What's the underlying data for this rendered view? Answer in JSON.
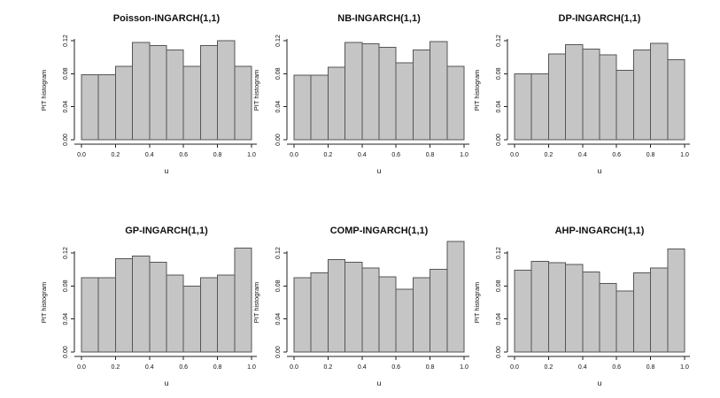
{
  "figure": {
    "background": "#ffffff",
    "bar_fill": "#c5c5c5",
    "bar_stroke": "#555555",
    "axis_color": "#222222",
    "text_color": "#111111"
  },
  "chart_data": [
    {
      "type": "bar",
      "variant": "histogram",
      "title": "Poisson-INGARCH(1,1)",
      "xlabel": "u",
      "ylabel": "PIT histogram",
      "bin_start": 0,
      "bin_width": 0.1,
      "values": [
        0.079,
        0.079,
        0.089,
        0.118,
        0.114,
        0.109,
        0.089,
        0.114,
        0.12,
        0.089
      ],
      "x_tick_labels": [
        "0.0",
        "0.2",
        "0.4",
        "0.6",
        "0.8",
        "1.0"
      ],
      "y_tick_labels": [
        "0.00",
        "0.04",
        "0.08",
        "0.12"
      ],
      "xlim": [
        0,
        1
      ],
      "ylim": [
        0,
        0.14
      ],
      "grid": false,
      "legend": false
    },
    {
      "type": "bar",
      "variant": "histogram",
      "title": "NB-INGARCH(1,1)",
      "xlabel": "u",
      "ylabel": "PIT histogram",
      "bin_start": 0,
      "bin_width": 0.1,
      "values": [
        0.078,
        0.078,
        0.088,
        0.118,
        0.116,
        0.112,
        0.093,
        0.109,
        0.119,
        0.089
      ],
      "x_tick_labels": [
        "0.0",
        "0.2",
        "0.4",
        "0.6",
        "0.8",
        "1.0"
      ],
      "y_tick_labels": [
        "0.00",
        "0.04",
        "0.08",
        "0.12"
      ],
      "xlim": [
        0,
        1
      ],
      "ylim": [
        0,
        0.14
      ],
      "grid": false,
      "legend": false
    },
    {
      "type": "bar",
      "variant": "histogram",
      "title": "DP-INGARCH(1,1)",
      "xlabel": "u",
      "ylabel": "PIT histogram",
      "bin_start": 0,
      "bin_width": 0.1,
      "values": [
        0.08,
        0.08,
        0.104,
        0.115,
        0.11,
        0.103,
        0.084,
        0.109,
        0.117,
        0.097
      ],
      "x_tick_labels": [
        "0.0",
        "0.2",
        "0.4",
        "0.6",
        "0.8",
        "1.0"
      ],
      "y_tick_labels": [
        "0.00",
        "0.04",
        "0.08",
        "0.12"
      ],
      "xlim": [
        0,
        1
      ],
      "ylim": [
        0,
        0.14
      ],
      "grid": false,
      "legend": false
    },
    {
      "type": "bar",
      "variant": "histogram",
      "title": "GP-INGARCH(1,1)",
      "xlabel": "u",
      "ylabel": "PIT histogram",
      "bin_start": 0,
      "bin_width": 0.1,
      "values": [
        0.09,
        0.09,
        0.113,
        0.116,
        0.109,
        0.093,
        0.08,
        0.09,
        0.093,
        0.126
      ],
      "x_tick_labels": [
        "0.0",
        "0.2",
        "0.4",
        "0.6",
        "0.8",
        "1.0"
      ],
      "y_tick_labels": [
        "0.00",
        "0.04",
        "0.08",
        "0.12"
      ],
      "xlim": [
        0,
        1
      ],
      "ylim": [
        0,
        0.14
      ],
      "grid": false,
      "legend": false
    },
    {
      "type": "bar",
      "variant": "histogram",
      "title": "COMP-INGARCH(1,1)",
      "xlabel": "u",
      "ylabel": "PIT histogram",
      "bin_start": 0,
      "bin_width": 0.1,
      "values": [
        0.09,
        0.096,
        0.112,
        0.109,
        0.102,
        0.091,
        0.076,
        0.09,
        0.1,
        0.134
      ],
      "x_tick_labels": [
        "0.0",
        "0.2",
        "0.4",
        "0.6",
        "0.8",
        "1.0"
      ],
      "y_tick_labels": [
        "0.00",
        "0.04",
        "0.08",
        "0.12"
      ],
      "xlim": [
        0,
        1
      ],
      "ylim": [
        0,
        0.14
      ],
      "grid": false,
      "legend": false
    },
    {
      "type": "bar",
      "variant": "histogram",
      "title": "AHP-INGARCH(1,1)",
      "xlabel": "u",
      "ylabel": "PIT histogram",
      "bin_start": 0,
      "bin_width": 0.1,
      "values": [
        0.099,
        0.11,
        0.108,
        0.106,
        0.097,
        0.083,
        0.074,
        0.096,
        0.102,
        0.125
      ],
      "x_tick_labels": [
        "0.0",
        "0.2",
        "0.4",
        "0.6",
        "0.8",
        "1.0"
      ],
      "y_tick_labels": [
        "0.00",
        "0.04",
        "0.08",
        "0.12"
      ],
      "xlim": [
        0,
        1
      ],
      "ylim": [
        0,
        0.14
      ],
      "grid": false,
      "legend": false
    }
  ]
}
